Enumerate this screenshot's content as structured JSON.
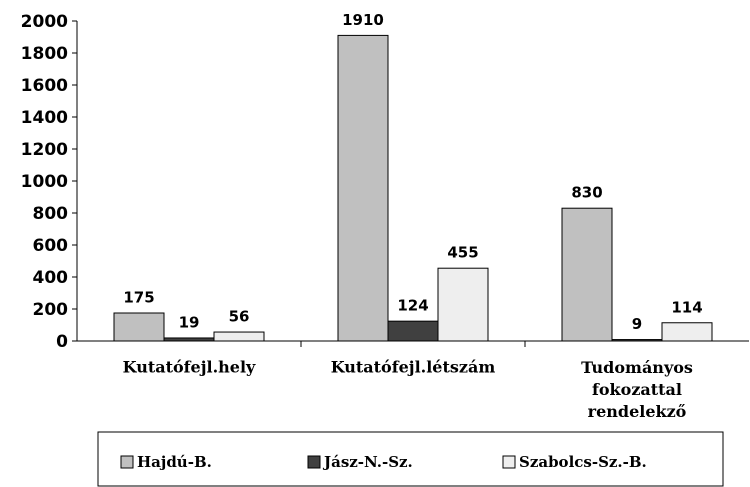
{
  "chart_data": {
    "type": "bar",
    "categories": [
      "Kutatófejl.hely",
      "Kutatófejl.létszám",
      "Tudományos fokozattal rendelekző"
    ],
    "series": [
      {
        "name": "Hajdú-B.",
        "color": "#c0c0c0",
        "values": [
          175,
          1910,
          830
        ]
      },
      {
        "name": "Jász-N.-Sz.",
        "color": "#404040",
        "values": [
          19,
          124,
          9
        ]
      },
      {
        "name": "Szabolcs-Sz.-B.",
        "color": "#eeeeee",
        "values": [
          56,
          455,
          114
        ]
      }
    ],
    "ylim": [
      0,
      2000
    ],
    "yticks": [
      0,
      200,
      400,
      600,
      800,
      1000,
      1200,
      1400,
      1600,
      1800,
      2000
    ],
    "grid": false,
    "legend": "bottom"
  }
}
